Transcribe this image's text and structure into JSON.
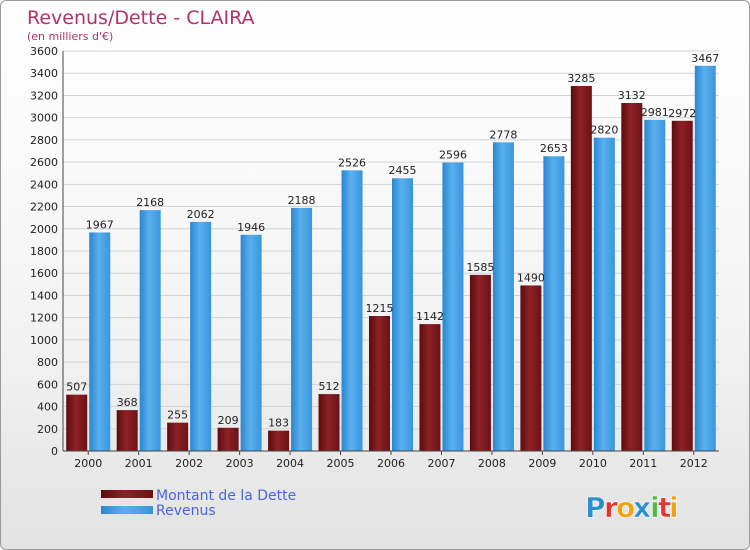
{
  "chart_data": {
    "type": "bar",
    "title": "Revenus/Dette - CLAIRA",
    "subtitle": "(en milliers d'€)",
    "categories": [
      "2000",
      "2001",
      "2002",
      "2003",
      "2004",
      "2005",
      "2006",
      "2007",
      "2008",
      "2009",
      "2010",
      "2011",
      "2012"
    ],
    "series": [
      {
        "name": "Montant de la Dette",
        "color": "#8b1a1a",
        "values": [
          507,
          368,
          255,
          209,
          183,
          512,
          1215,
          1142,
          1585,
          1490,
          3285,
          3132,
          2972
        ]
      },
      {
        "name": "Revenus",
        "color": "#3d9be3",
        "values": [
          1967,
          2168,
          2062,
          1946,
          2188,
          2526,
          2455,
          2596,
          2778,
          2653,
          2820,
          2981,
          3467
        ]
      }
    ],
    "ylim": [
      0,
      3600
    ],
    "ytick_step": 200,
    "grid": true,
    "legend_position": "bottom-left"
  },
  "logo": {
    "text": "Proxiti",
    "letters": [
      "P",
      "r",
      "o",
      "x",
      "i",
      "t",
      "i"
    ],
    "colors": [
      "#2b8fd0",
      "#e3342f",
      "#f2a20c",
      "#2b8fd0",
      "#4db847",
      "#e3342f",
      "#f2a20c"
    ]
  }
}
